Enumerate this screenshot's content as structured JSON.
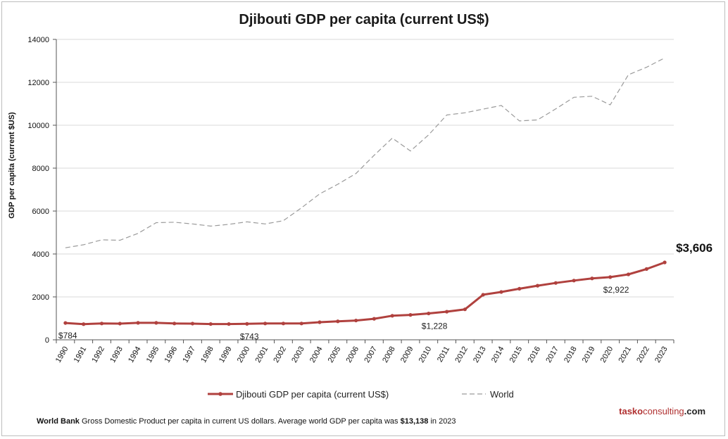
{
  "chart_data": {
    "type": "line",
    "title": "Djibouti GDP per capita (current US$)",
    "ylabel": "GDP per capita (current $US)",
    "xlabel": "",
    "ylim": [
      0,
      14000
    ],
    "yticks": [
      "0",
      "2000",
      "4000",
      "6000",
      "8000",
      "10000",
      "12000",
      "14000"
    ],
    "ytick_values": [
      0,
      2000,
      4000,
      6000,
      8000,
      10000,
      12000,
      14000
    ],
    "categories": [
      "1990",
      "1991",
      "1992",
      "1993",
      "1994",
      "1995",
      "1996",
      "1997",
      "1998",
      "1999",
      "2000",
      "2001",
      "2002",
      "2003",
      "2004",
      "2005",
      "2006",
      "2007",
      "2008",
      "2009",
      "2010",
      "2011",
      "2012",
      "2013",
      "2014",
      "2015",
      "2016",
      "2017",
      "2018",
      "2019",
      "2020",
      "2021",
      "2022",
      "2023"
    ],
    "grid": true,
    "legend_position": "bottom",
    "series": [
      {
        "name": "Djibouti GDP per capita (current US$)",
        "style": "solid-markers",
        "color": "#b0413e",
        "values": [
          784,
          730,
          760,
          755,
          790,
          790,
          760,
          755,
          735,
          735,
          743,
          760,
          760,
          760,
          820,
          860,
          900,
          980,
          1120,
          1160,
          1228,
          1310,
          1420,
          2100,
          2230,
          2380,
          2520,
          2650,
          2760,
          2860,
          2922,
          3050,
          3300,
          3606
        ]
      },
      {
        "name": "World",
        "style": "dashed",
        "color": "#9a9a9a",
        "values": [
          4290,
          4430,
          4660,
          4640,
          4960,
          5460,
          5480,
          5400,
          5300,
          5380,
          5500,
          5400,
          5550,
          6150,
          6800,
          7250,
          7750,
          8600,
          9400,
          8800,
          9550,
          10480,
          10580,
          10750,
          10920,
          10200,
          10250,
          10760,
          11300,
          11350,
          10950,
          12350,
          12700,
          13138
        ]
      }
    ],
    "annotations": [
      {
        "text": "$784",
        "x": "1990",
        "y": 784,
        "style": "small"
      },
      {
        "text": "$743",
        "x": "2000",
        "y": 743,
        "style": "small"
      },
      {
        "text": "$1,228",
        "x": "2010",
        "y": 1228,
        "style": "small"
      },
      {
        "text": "$2,922",
        "x": "2020",
        "y": 2922,
        "style": "small"
      },
      {
        "text": "$3,606",
        "x": "2023",
        "y": 3606,
        "style": "big"
      }
    ]
  },
  "footer": {
    "source": "World Bank",
    "description": "Gross Domestic Product per capita in current US dollars.  Average world GDP per capita was",
    "highlight": "$13,138",
    "suffix": "in 2023"
  },
  "brand": {
    "part1": "tasko",
    "part2": "consulting",
    "part3": ".com"
  }
}
